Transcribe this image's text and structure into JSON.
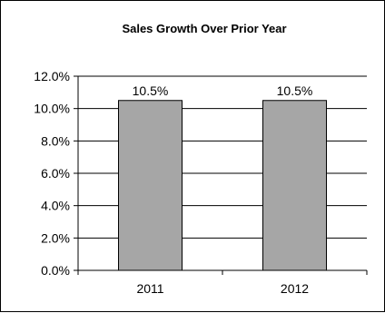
{
  "chart_data": {
    "type": "bar",
    "title": "Sales Growth Over Prior Year",
    "categories": [
      "2011",
      "2012"
    ],
    "values": [
      10.5,
      10.5
    ],
    "data_labels": [
      "10.5%",
      "10.5%"
    ],
    "ylim": [
      0,
      12
    ],
    "yticks": [
      "0.0%",
      "2.0%",
      "4.0%",
      "6.0%",
      "8.0%",
      "10.0%",
      "12.0%"
    ],
    "xlabel": "",
    "ylabel": "",
    "grid": true,
    "legend": "none",
    "bar_color": "#a6a6a6"
  }
}
